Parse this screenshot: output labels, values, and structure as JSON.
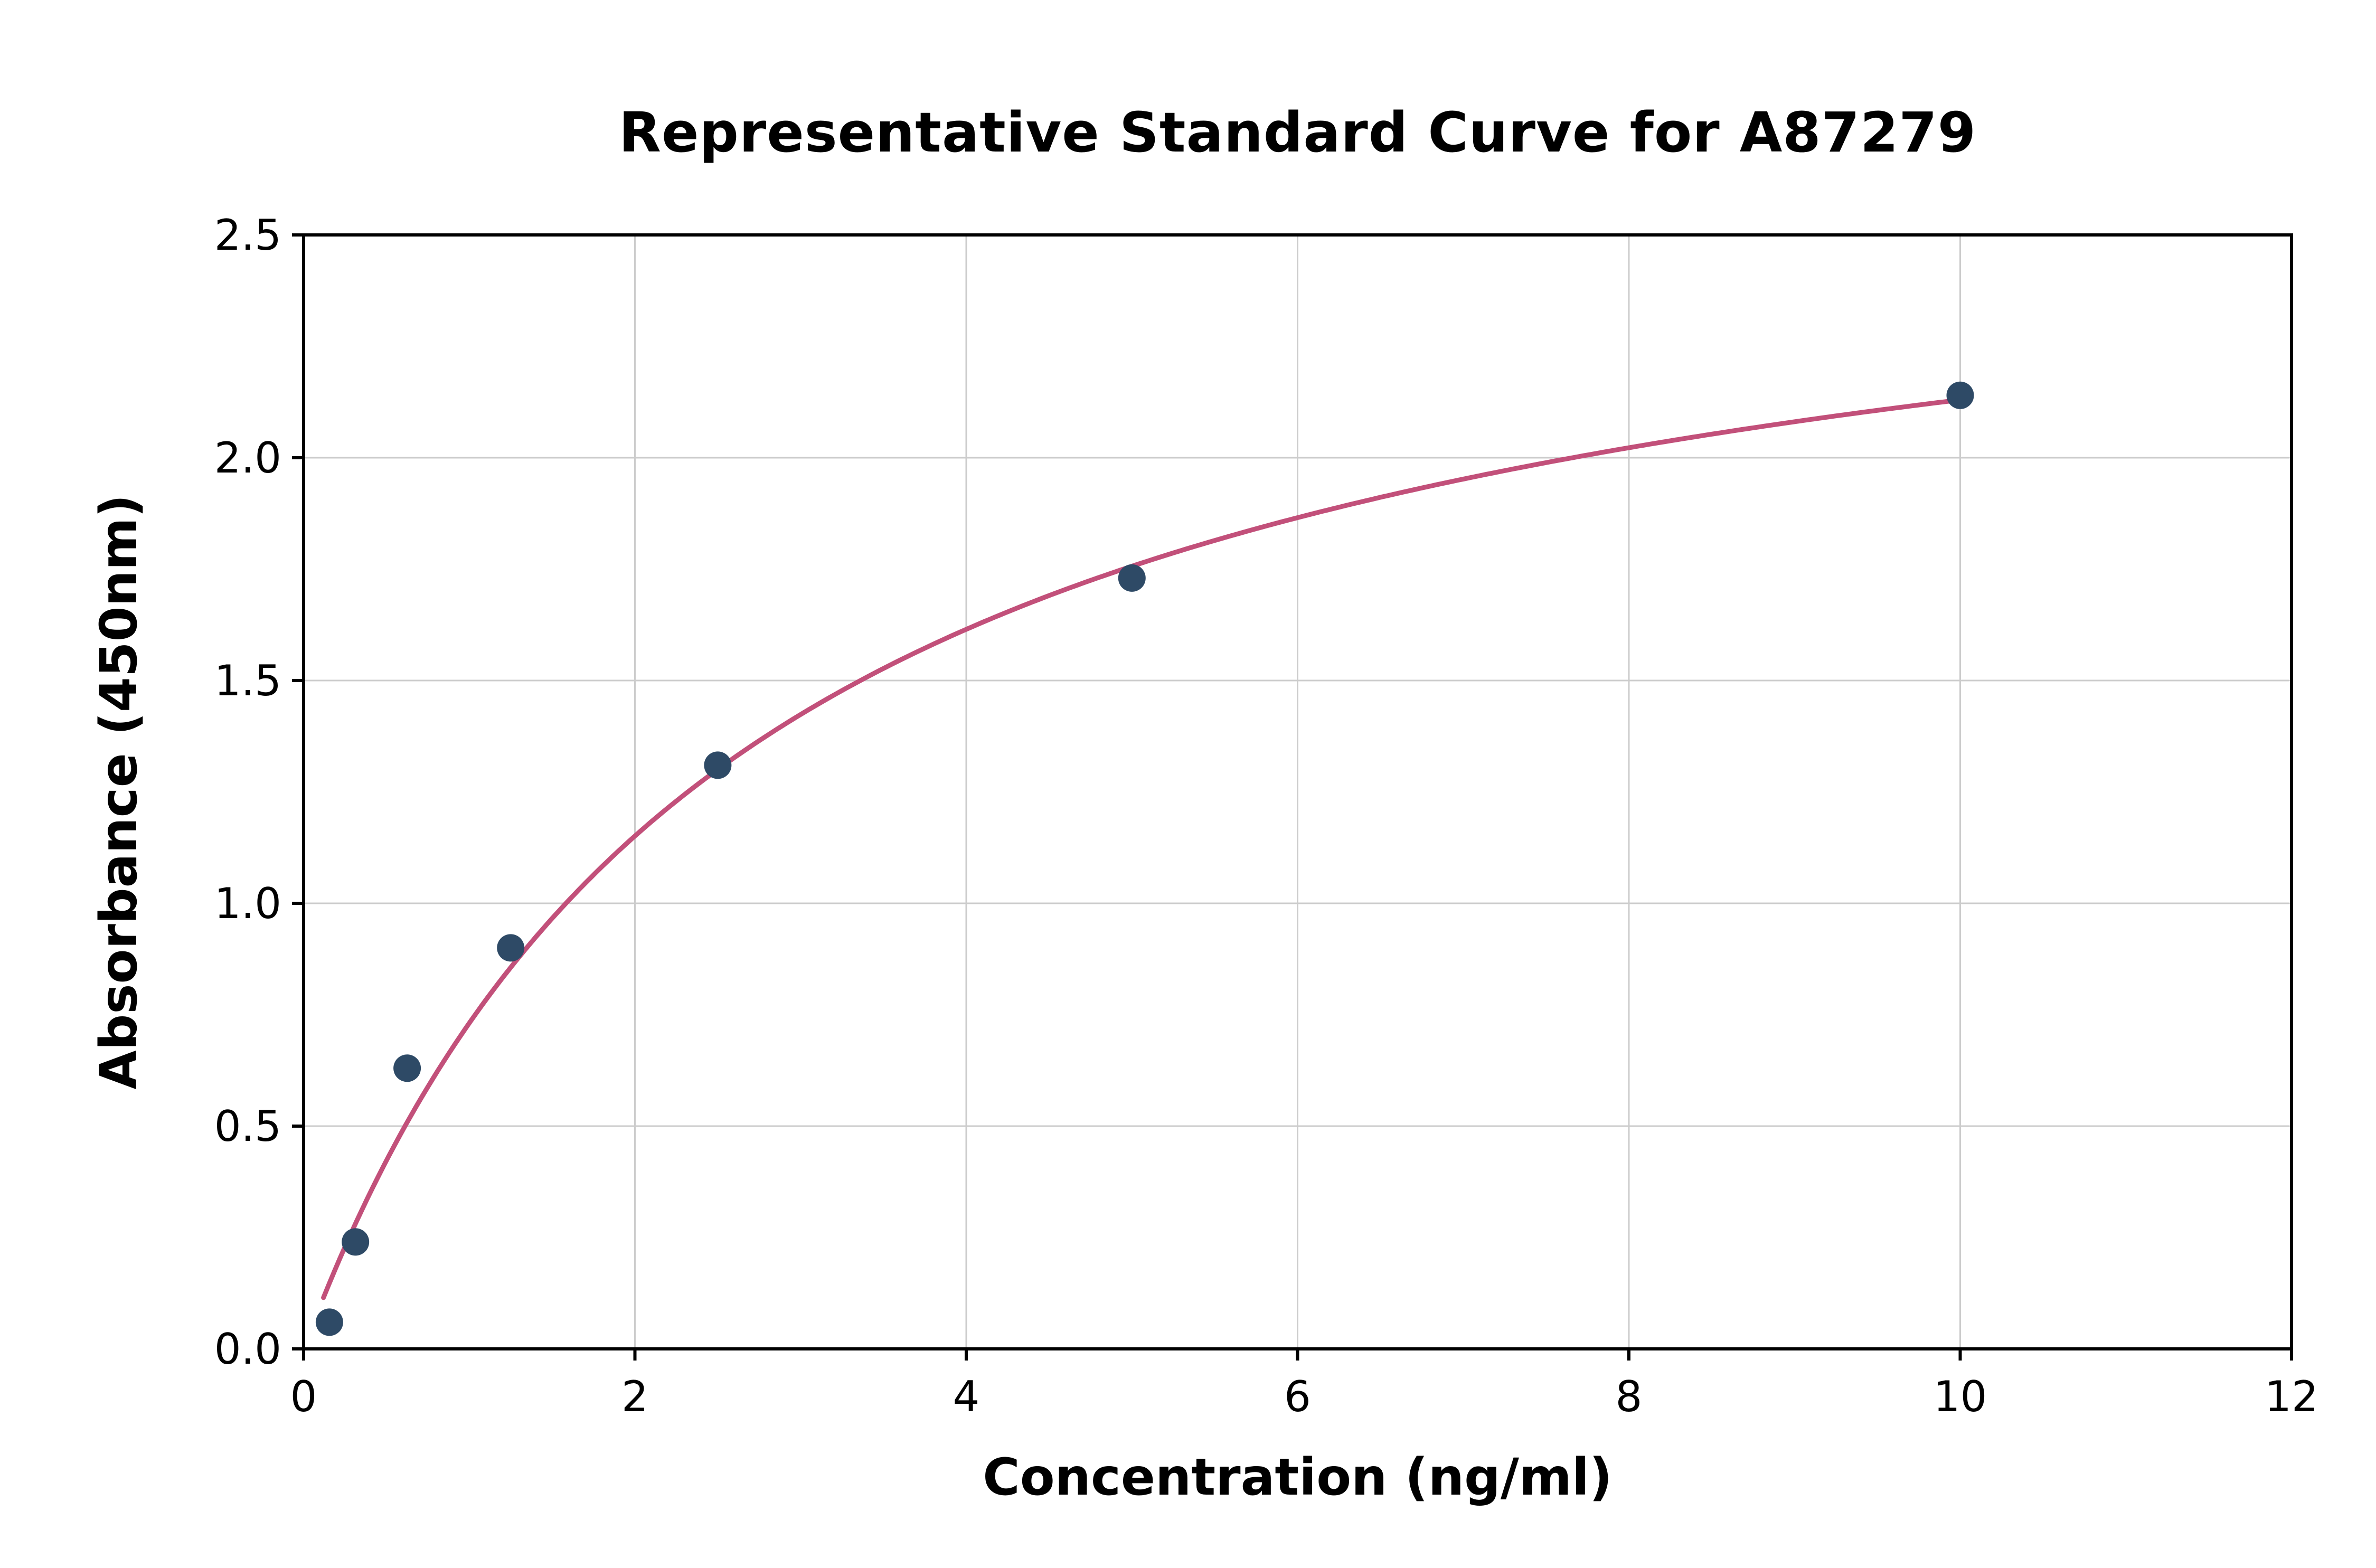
{
  "chart_data": {
    "type": "scatter",
    "title": "Representative Standard Curve for A87279",
    "xlabel": "Concentration (ng/ml)",
    "ylabel": "Absorbance (450nm)",
    "xlim": [
      0,
      12
    ],
    "ylim": [
      0,
      2.5
    ],
    "xticks": {
      "values": [
        0,
        2,
        4,
        6,
        8,
        10,
        12
      ],
      "labels": [
        "0",
        "2",
        "4",
        "6",
        "8",
        "10",
        "12"
      ]
    },
    "yticks": {
      "values": [
        0,
        0.5,
        1.0,
        1.5,
        2.0,
        2.5
      ],
      "labels": [
        "0.0",
        "0.5",
        "1.0",
        "1.5",
        "2.0",
        "2.5"
      ]
    },
    "grid": true,
    "legend": false,
    "points": [
      {
        "x": 0.156,
        "y": 0.06
      },
      {
        "x": 0.313,
        "y": 0.24
      },
      {
        "x": 0.625,
        "y": 0.63
      },
      {
        "x": 1.25,
        "y": 0.9
      },
      {
        "x": 2.5,
        "y": 1.31
      },
      {
        "x": 5.0,
        "y": 1.73
      },
      {
        "x": 10.0,
        "y": 2.14
      }
    ],
    "fit_curve": {
      "model": "michaelis_menten",
      "vmax": 2.705,
      "km": 2.7,
      "x_start": 0.12,
      "x_end": 10.0
    },
    "colors": {
      "point": "#2e4a66",
      "curve": "#c2507a",
      "grid": "#cccccc",
      "axis": "#000000",
      "background": "#ffffff"
    }
  }
}
